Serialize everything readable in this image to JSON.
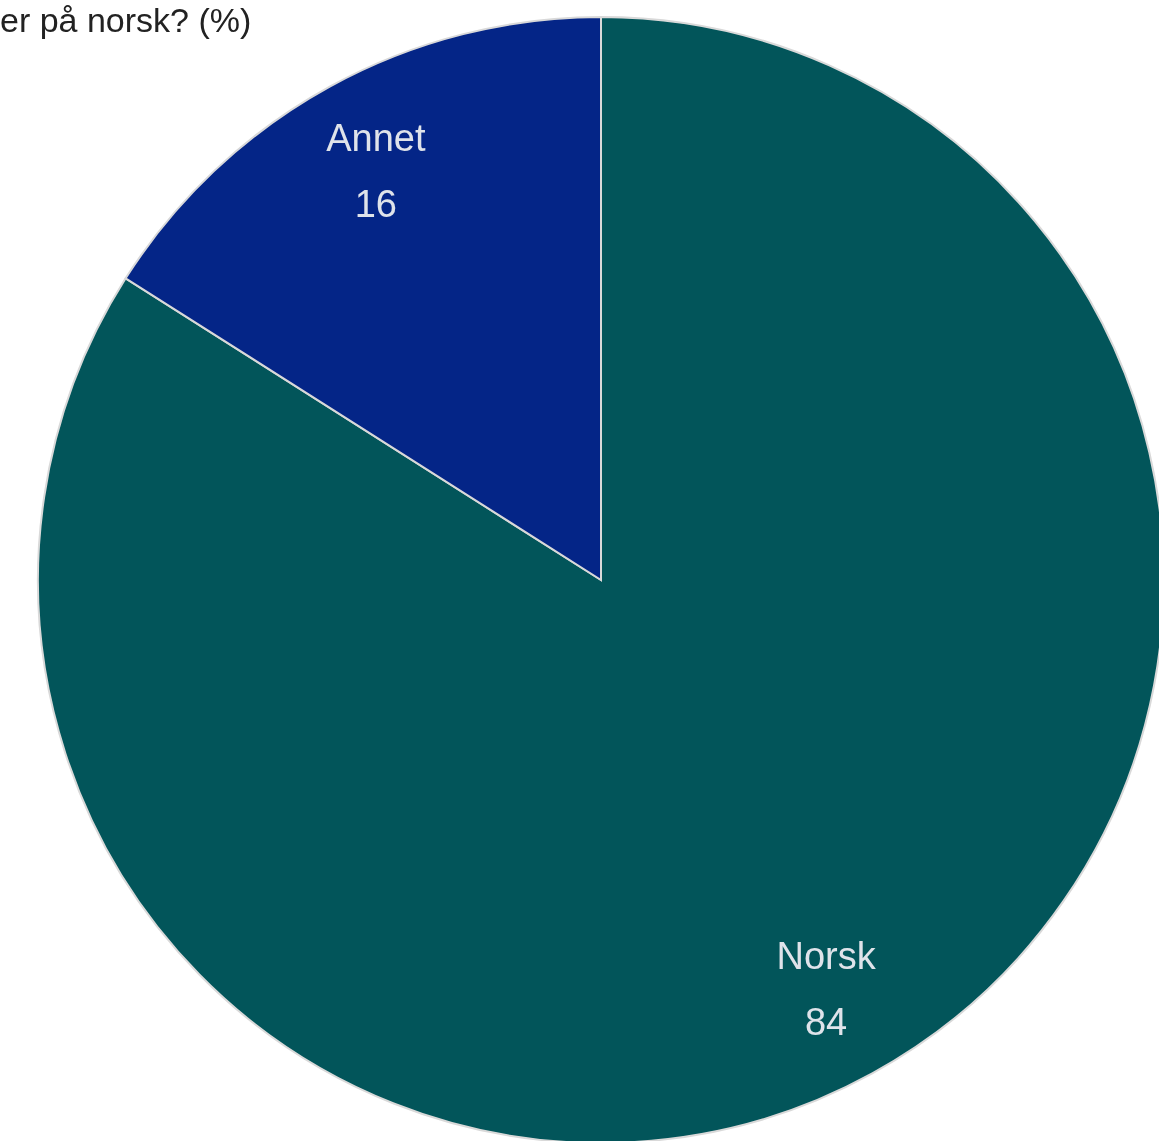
{
  "chart_data": {
    "type": "pie",
    "title": "er på norsk? (%)",
    "categories": [
      "Norsk",
      "Annet"
    ],
    "values": [
      84,
      16
    ],
    "colors": [
      "#02555a",
      "#042587"
    ],
    "data_labels": true
  }
}
